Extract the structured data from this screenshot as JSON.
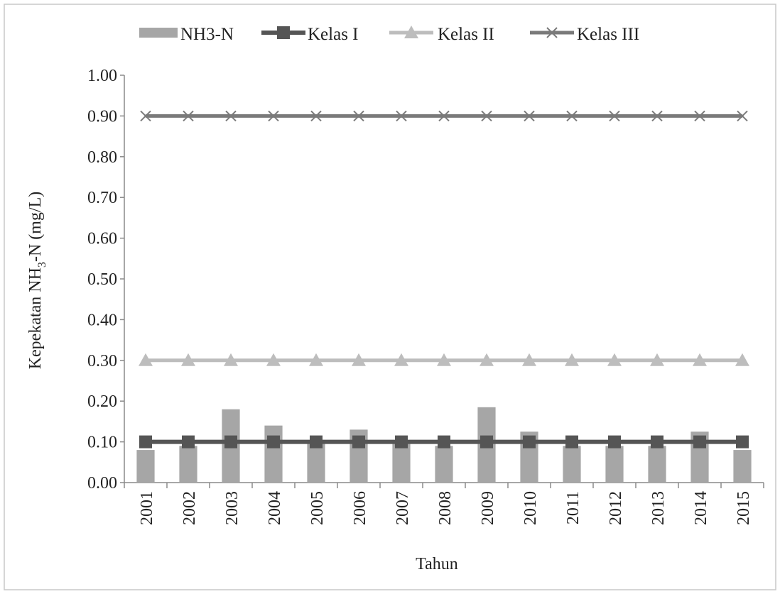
{
  "chart_data": {
    "type": "bar",
    "title": "",
    "xlabel": "Tahun",
    "ylabel_main": "Kepekatan NH",
    "ylabel_sub": "3",
    "ylabel_rest": "-N (mg/L)",
    "categories": [
      "2001",
      "2002",
      "2003",
      "2004",
      "2005",
      "2006",
      "2007",
      "2008",
      "2009",
      "2010",
      "2011",
      "2012",
      "2013",
      "2014",
      "2015"
    ],
    "ylim": [
      0,
      1.0
    ],
    "yticks": [
      "0.00",
      "0.10",
      "0.20",
      "0.30",
      "0.40",
      "0.50",
      "0.60",
      "0.70",
      "0.80",
      "0.90",
      "1.00"
    ],
    "ytick_values": [
      0,
      0.1,
      0.2,
      0.3,
      0.4,
      0.5,
      0.6,
      0.7,
      0.8,
      0.9,
      1.0
    ],
    "legend_position": "top",
    "grid": false,
    "series": [
      {
        "name": "NH3-N",
        "kind": "bar",
        "color": "#a6a6a6",
        "values": [
          0.08,
          0.09,
          0.18,
          0.14,
          0.1,
          0.13,
          0.1,
          0.09,
          0.185,
          0.125,
          0.09,
          0.09,
          0.09,
          0.125,
          0.08
        ]
      },
      {
        "name": "Kelas I",
        "kind": "line",
        "marker": "square",
        "color": "#555555",
        "values": [
          0.1,
          0.1,
          0.1,
          0.1,
          0.1,
          0.1,
          0.1,
          0.1,
          0.1,
          0.1,
          0.1,
          0.1,
          0.1,
          0.1,
          0.1
        ]
      },
      {
        "name": "Kelas II",
        "kind": "line",
        "marker": "triangle",
        "color": "#bdbdbd",
        "values": [
          0.3,
          0.3,
          0.3,
          0.3,
          0.3,
          0.3,
          0.3,
          0.3,
          0.3,
          0.3,
          0.3,
          0.3,
          0.3,
          0.3,
          0.3
        ]
      },
      {
        "name": "Kelas III",
        "kind": "line",
        "marker": "x",
        "color": "#7a7a7a",
        "values": [
          0.9,
          0.9,
          0.9,
          0.9,
          0.9,
          0.9,
          0.9,
          0.9,
          0.9,
          0.9,
          0.9,
          0.9,
          0.9,
          0.9,
          0.9
        ]
      }
    ]
  }
}
